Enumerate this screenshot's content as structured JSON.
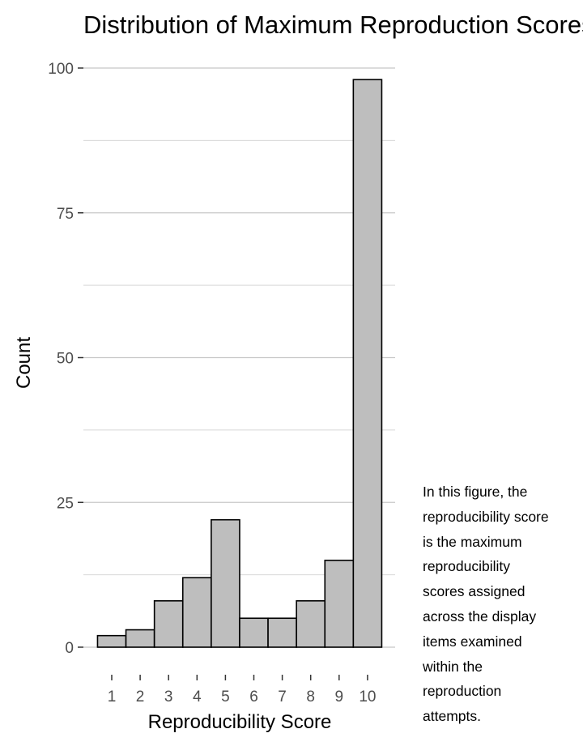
{
  "chart_data": {
    "type": "bar",
    "title": "Distribution of Maximum Reproduction Scores",
    "xlabel": "Reproducibility Score",
    "ylabel": "Count",
    "categories": [
      "1",
      "2",
      "3",
      "4",
      "5",
      "6",
      "7",
      "8",
      "9",
      "10"
    ],
    "values": [
      2,
      3,
      8,
      12,
      22,
      5,
      5,
      8,
      15,
      98
    ],
    "ylim": [
      0,
      100
    ],
    "yticks": [
      0,
      25,
      50,
      75,
      100
    ],
    "grid": "horizontal",
    "colors": {
      "bar_fill": "#bebebe",
      "bar_stroke": "#000000",
      "grid": "#c8c8c8"
    }
  },
  "caption": "In this figure, the\nreproducibility score\nis the maximum\nreproducibility\nscores assigned\nacross the display\nitems examined\nwithin the\nreproduction\nattempts."
}
